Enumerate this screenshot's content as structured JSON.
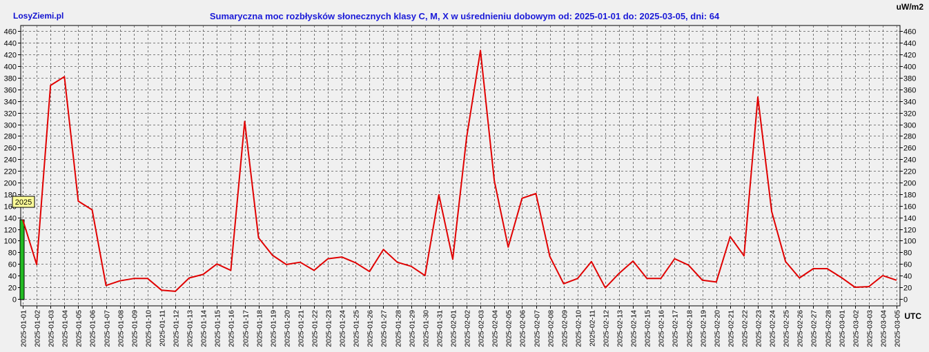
{
  "brand": "LosyZiemi.pl",
  "chart_data": {
    "type": "line",
    "title": "Sumaryczna moc rozbłysków słonecznych klasy C, M, X w uśrednieniu dobowym od: 2025-01-01 do: 2025-03-05, dni: 64",
    "unit_label": "uW/m2",
    "timezone_label": "UTC",
    "year_marker": "2025",
    "ylim": [
      -12,
      470
    ],
    "yticks": [
      0,
      20,
      40,
      60,
      80,
      100,
      120,
      140,
      160,
      180,
      200,
      220,
      240,
      260,
      280,
      300,
      320,
      340,
      360,
      380,
      400,
      420,
      440,
      460
    ],
    "grid": true,
    "line_color": "#e00000",
    "bar_color": "#22bb22",
    "x": [
      "2025-01-01",
      "2025-01-02",
      "2025-01-03",
      "2025-01-04",
      "2025-01-05",
      "2025-01-06",
      "2025-01-07",
      "2025-01-08",
      "2025-01-09",
      "2025-01-10",
      "2025-01-11",
      "2025-01-12",
      "2025-01-13",
      "2025-01-14",
      "2025-01-15",
      "2025-01-16",
      "2025-01-17",
      "2025-01-18",
      "2025-01-19",
      "2025-01-20",
      "2025-01-21",
      "2025-01-22",
      "2025-01-23",
      "2025-01-24",
      "2025-01-25",
      "2025-01-26",
      "2025-01-27",
      "2025-01-28",
      "2025-01-29",
      "2025-01-30",
      "2025-01-31",
      "2025-02-01",
      "2025-02-02",
      "2025-02-03",
      "2025-02-04",
      "2025-02-05",
      "2025-02-06",
      "2025-02-07",
      "2025-02-08",
      "2025-02-09",
      "2025-02-10",
      "2025-02-11",
      "2025-02-12",
      "2025-02-13",
      "2025-02-14",
      "2025-02-15",
      "2025-02-16",
      "2025-02-17",
      "2025-02-18",
      "2025-02-19",
      "2025-02-20",
      "2025-02-21",
      "2025-02-22",
      "2025-02-23",
      "2025-02-24",
      "2025-02-25",
      "2025-02-26",
      "2025-02-27",
      "2025-02-28",
      "2025-03-01",
      "2025-03-02",
      "2025-03-03",
      "2025-03-04",
      "2025-03-05"
    ],
    "values": [
      136,
      59,
      367,
      382,
      168,
      153,
      23,
      31,
      35,
      35,
      15,
      13,
      36,
      42,
      60,
      49,
      305,
      105,
      75,
      59,
      63,
      49,
      69,
      72,
      62,
      47,
      85,
      63,
      56,
      40,
      179,
      68,
      277,
      427,
      203,
      89,
      173,
      181,
      73,
      26,
      35,
      64,
      19,
      44,
      65,
      35,
      35,
      69,
      58,
      32,
      29,
      107,
      74,
      347,
      150,
      64,
      36,
      52,
      52,
      37,
      20,
      21,
      40,
      32
    ]
  }
}
